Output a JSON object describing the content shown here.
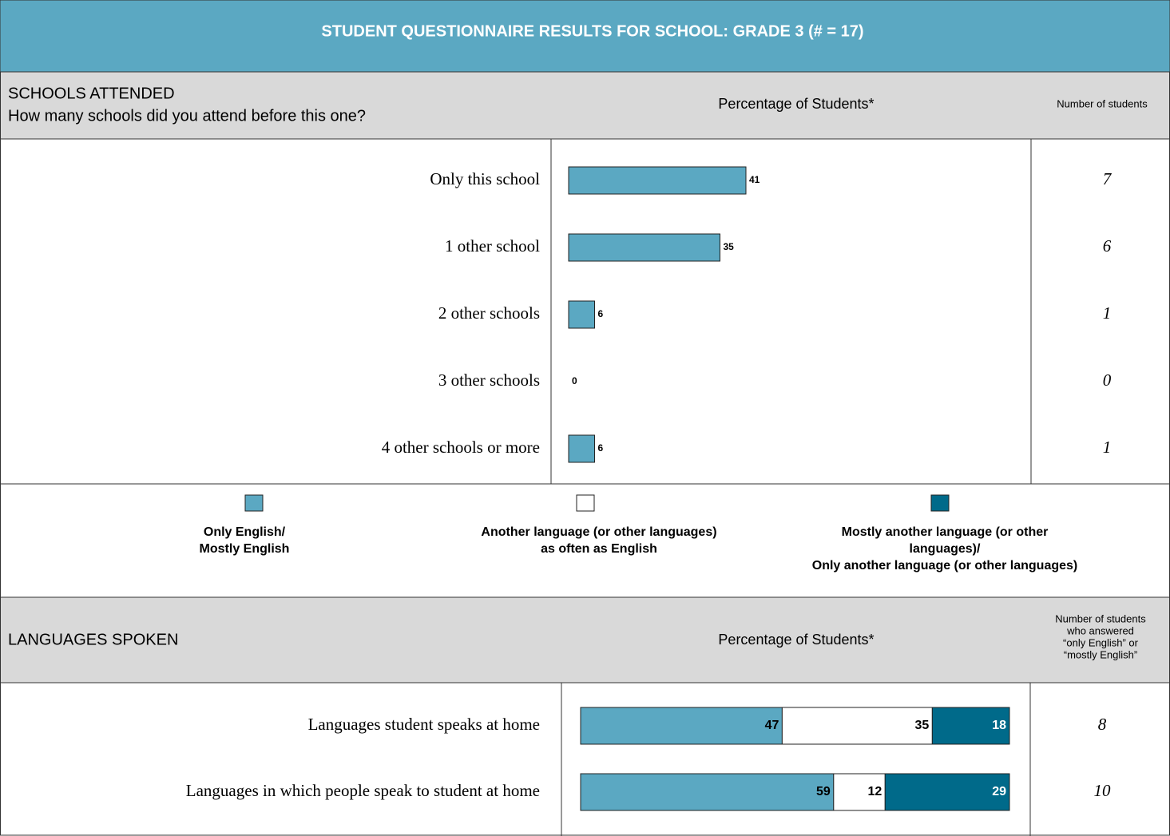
{
  "header": {
    "title": "STUDENT QUESTIONNAIRE RESULTS FOR SCHOOL: GRADE 3 (# = 17)"
  },
  "schools": {
    "heading": "SCHOOLS ATTENDED",
    "question": "How many schools did you attend before this one?",
    "column_label": "Percentage of Students*",
    "count_label": "Number of students",
    "color": "#5ba8c2",
    "rows": [
      {
        "label": "Only this school",
        "percent": 41,
        "count": 7
      },
      {
        "label": "1 other school",
        "percent": 35,
        "count": 6
      },
      {
        "label": "2 other schools",
        "percent": 6,
        "count": 1
      },
      {
        "label": "3 other schools",
        "percent": 0,
        "count": 0
      },
      {
        "label": "4 other schools or more",
        "percent": 6,
        "count": 1
      }
    ]
  },
  "legend": {
    "items": [
      {
        "lines": [
          "Only English/",
          "Mostly English"
        ],
        "color": "#5ba8c2"
      },
      {
        "lines": [
          "Another language (or other languages)",
          "as often as English"
        ],
        "color": "#ffffff"
      },
      {
        "lines": [
          "Mostly another language (or other",
          "languages)/",
          "Only another language (or other languages)"
        ],
        "color": "#006a8a"
      }
    ]
  },
  "languages": {
    "heading": "LANGUAGES SPOKEN",
    "column_label": "Percentage of Students*",
    "count_label": [
      "Number of students",
      "who answered",
      "“only English” or",
      "“mostly English”"
    ],
    "rows": [
      {
        "label": "Languages student speaks at home",
        "segments": [
          47,
          35,
          18
        ],
        "count": 8
      },
      {
        "label": "Languages in which people speak to student at home",
        "segments": [
          59,
          12,
          29
        ],
        "count": 10
      }
    ]
  }
}
